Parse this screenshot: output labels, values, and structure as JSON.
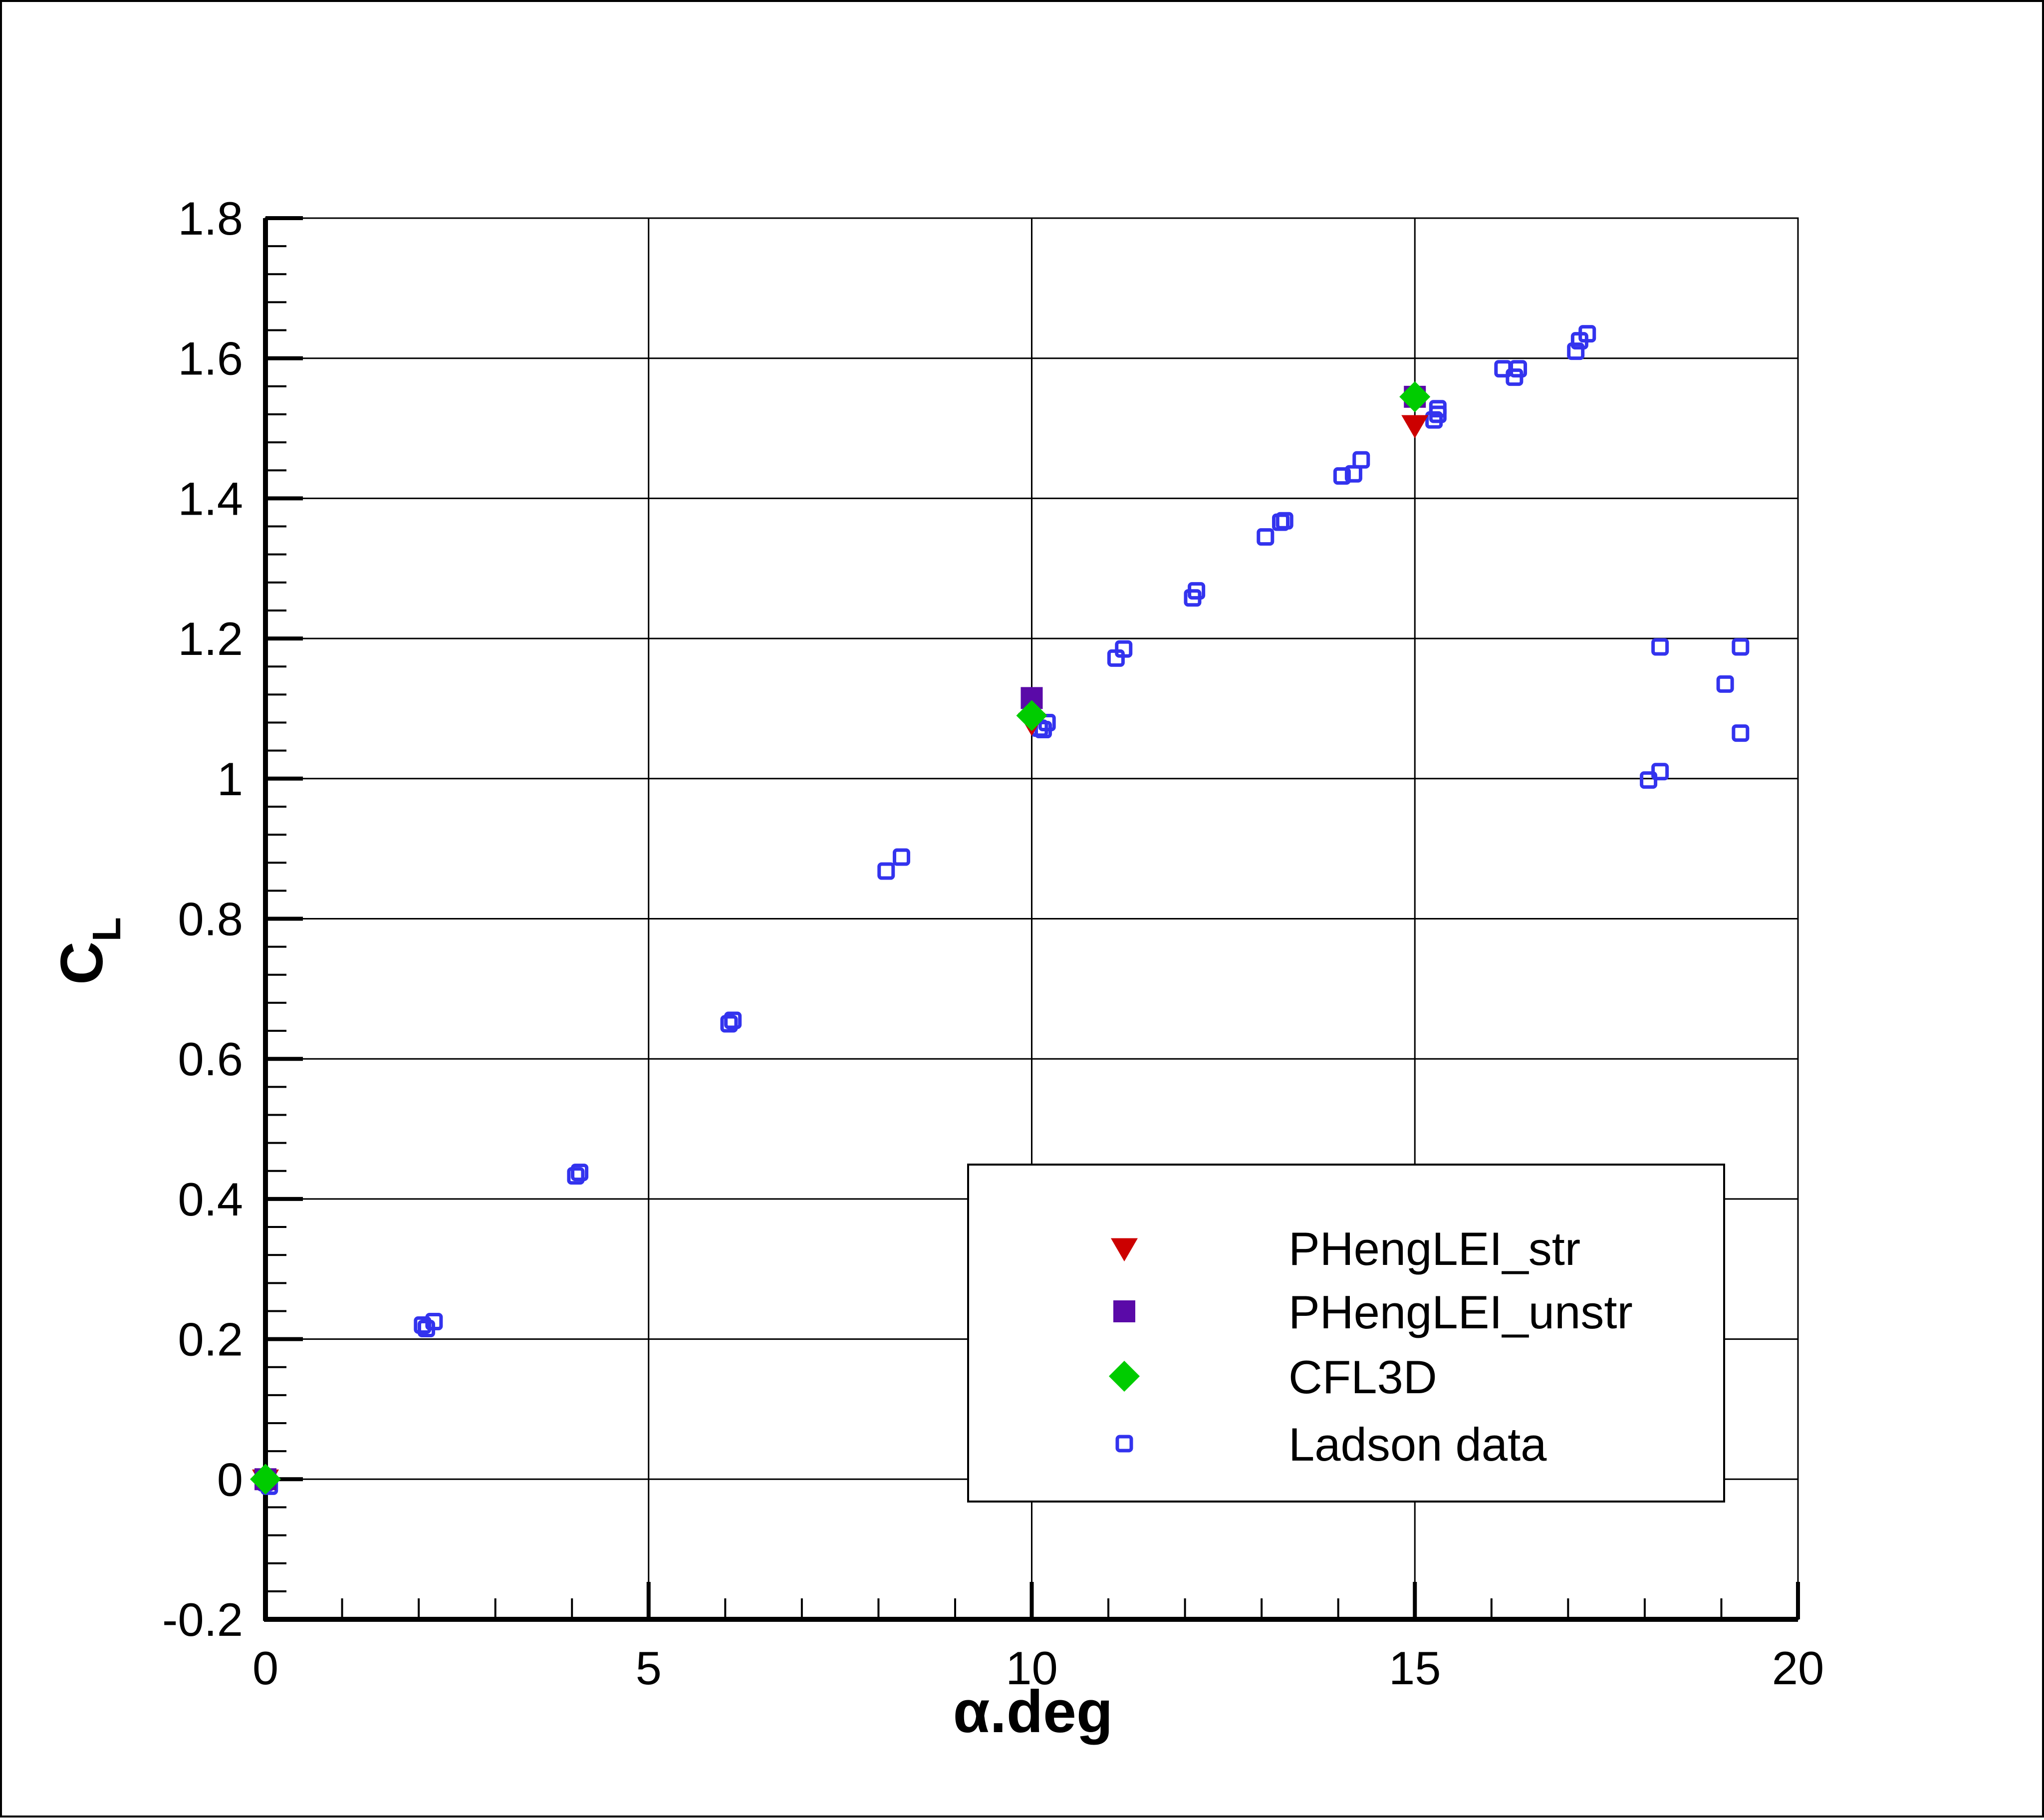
{
  "chart_data": {
    "type": "scatter",
    "xlabel": "α.deg",
    "ylabel_main": "C",
    "ylabel_sub": "L",
    "xlim": [
      0,
      20
    ],
    "ylim": [
      -0.2,
      1.8
    ],
    "xticks": [
      0,
      5,
      10,
      15,
      20
    ],
    "yticks": [
      -0.2,
      0,
      0.2,
      0.4,
      0.6,
      0.8,
      1,
      1.2,
      1.4,
      1.6,
      1.8
    ],
    "xtick_labels": [
      "0",
      "5",
      "10",
      "15",
      "20"
    ],
    "ytick_labels": [
      "-0.2",
      "0",
      "0.2",
      "0.4",
      "0.6",
      "0.8",
      "1",
      "1.2",
      "1.4",
      "1.6",
      "1.8"
    ],
    "grid": true,
    "legend_position": "bottom-right",
    "series": [
      {
        "name": "PHengLEI_str",
        "marker": "triangle-down",
        "color": "#cc0000",
        "x": [
          0,
          10,
          15
        ],
        "y": [
          0.0,
          1.08,
          1.505
        ]
      },
      {
        "name": "PHengLEI_unstr",
        "marker": "square-filled",
        "color": "#5a0aa8",
        "x": [
          0,
          10,
          15
        ],
        "y": [
          0.0,
          1.115,
          1.545
        ]
      },
      {
        "name": "CFL3D",
        "marker": "diamond",
        "color": "#00cc00",
        "x": [
          0,
          10,
          15
        ],
        "y": [
          0.0,
          1.09,
          1.545
        ]
      },
      {
        "name": "Ladson data",
        "marker": "square-open",
        "color": "#3333ee",
        "x": [
          0.0,
          0.05,
          0.0,
          2.05,
          2.1,
          2.2,
          4.05,
          4.1,
          6.05,
          6.1,
          8.1,
          8.3,
          10.1,
          10.15,
          10.2,
          11.1,
          11.2,
          12.1,
          12.15,
          13.05,
          13.25,
          13.3,
          14.05,
          14.2,
          14.3,
          15.25,
          15.3,
          15.3,
          16.15,
          16.3,
          16.35,
          17.1,
          17.15,
          17.25,
          18.05,
          18.2,
          18.2,
          19.05,
          19.25,
          19.25
        ],
        "y": [
          0.0,
          -0.01,
          -0.005,
          0.22,
          0.215,
          0.225,
          0.433,
          0.438,
          0.65,
          0.655,
          0.868,
          0.888,
          1.072,
          1.07,
          1.08,
          1.172,
          1.185,
          1.258,
          1.268,
          1.345,
          1.366,
          1.368,
          1.432,
          1.435,
          1.455,
          1.512,
          1.52,
          1.528,
          1.585,
          1.573,
          1.585,
          1.61,
          1.625,
          1.635,
          0.998,
          1.188,
          1.01,
          1.135,
          1.188,
          1.065
        ]
      }
    ]
  }
}
